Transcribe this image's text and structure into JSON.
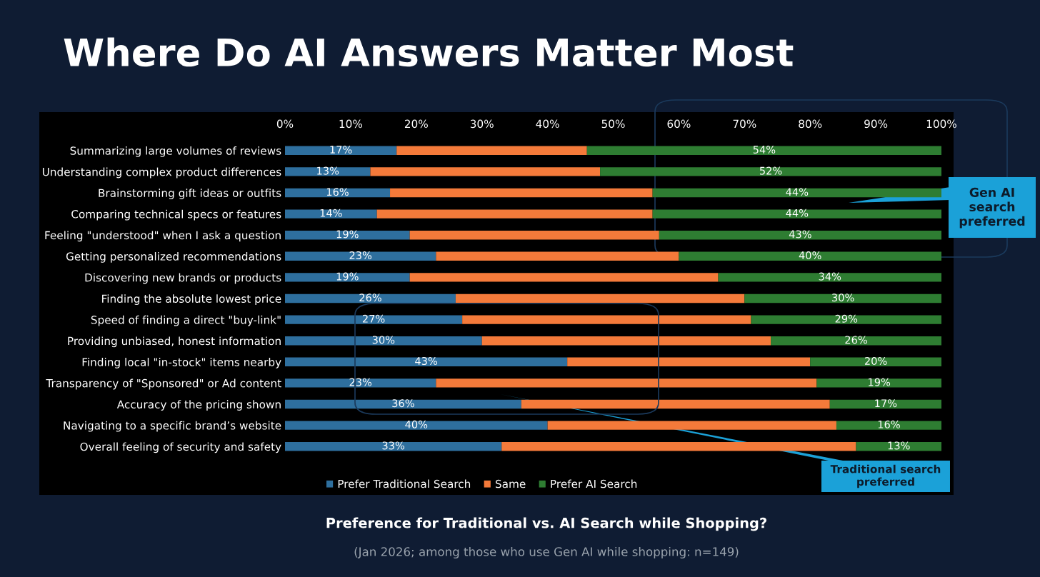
{
  "chart_data": {
    "type": "bar",
    "orientation": "horizontal",
    "stacked": true,
    "title": "Where Do AI Answers Matter Most",
    "subtitle": "Preference for Traditional vs. AI Search while Shopping?",
    "annotations": [
      "(Jan 2026; among those who use Gen AI while shopping: n=149)",
      "Gen AI search preferred",
      "Traditional search preferred"
    ],
    "categories": [
      "Summarizing large volumes of reviews",
      "Understanding complex product differences",
      "Brainstorming gift ideas or outfits",
      "Comparing technical specs or features",
      "Feeling \"understood\" when I ask a question",
      "Getting personalized recommendations",
      "Discovering new brands or products",
      "Finding the absolute lowest price",
      "Speed of finding a direct \"buy-link\"",
      "Providing unbiased, honest information",
      "Finding local \"in-stock\" items nearby",
      "Transparency of \"Sponsored\" or Ad content",
      "Accuracy of the pricing shown",
      "Navigating to a specific brand’s website",
      "Overall feeling of security and safety"
    ],
    "series": [
      {
        "name": "Prefer Traditional Search",
        "color": "#2e6f9e",
        "values": [
          17,
          13,
          16,
          14,
          19,
          23,
          19,
          26,
          27,
          30,
          43,
          23,
          36,
          40,
          33
        ],
        "value_labels": [
          "17%",
          "13%",
          "16%",
          "14%",
          "19%",
          "23%",
          "19%",
          "26%",
          "27%",
          "30%",
          "43%",
          "23%",
          "36%",
          "40%",
          "33%"
        ]
      },
      {
        "name": "Same",
        "color": "#f47a3a",
        "values": [
          29,
          35,
          40,
          42,
          38,
          37,
          47,
          44,
          44,
          44,
          37,
          58,
          47,
          44,
          54
        ]
      },
      {
        "name": "Prefer AI Search",
        "color": "#2e7d32",
        "values": [
          54,
          52,
          44,
          44,
          43,
          40,
          34,
          30,
          29,
          26,
          20,
          19,
          17,
          16,
          13
        ],
        "value_labels": [
          "54%",
          "52%",
          "44%",
          "44%",
          "43%",
          "40%",
          "34%",
          "30%",
          "29%",
          "26%",
          "20%",
          "19%",
          "17%",
          "16%",
          "13%"
        ]
      }
    ],
    "xlim": [
      0,
      100
    ],
    "xticks": [
      {
        "value": 0,
        "label": "0%"
      },
      {
        "value": 10,
        "label": "10%"
      },
      {
        "value": 20,
        "label": "20%"
      },
      {
        "value": 30,
        "label": "30%"
      },
      {
        "value": 40,
        "label": "40%"
      },
      {
        "value": 50,
        "label": "50%"
      },
      {
        "value": 60,
        "label": "60%"
      },
      {
        "value": 70,
        "label": "70%"
      },
      {
        "value": 80,
        "label": "80%"
      },
      {
        "value": 90,
        "label": "90%"
      },
      {
        "value": 100,
        "label": "100%"
      }
    ],
    "grid": false,
    "legend": "bottom"
  }
}
